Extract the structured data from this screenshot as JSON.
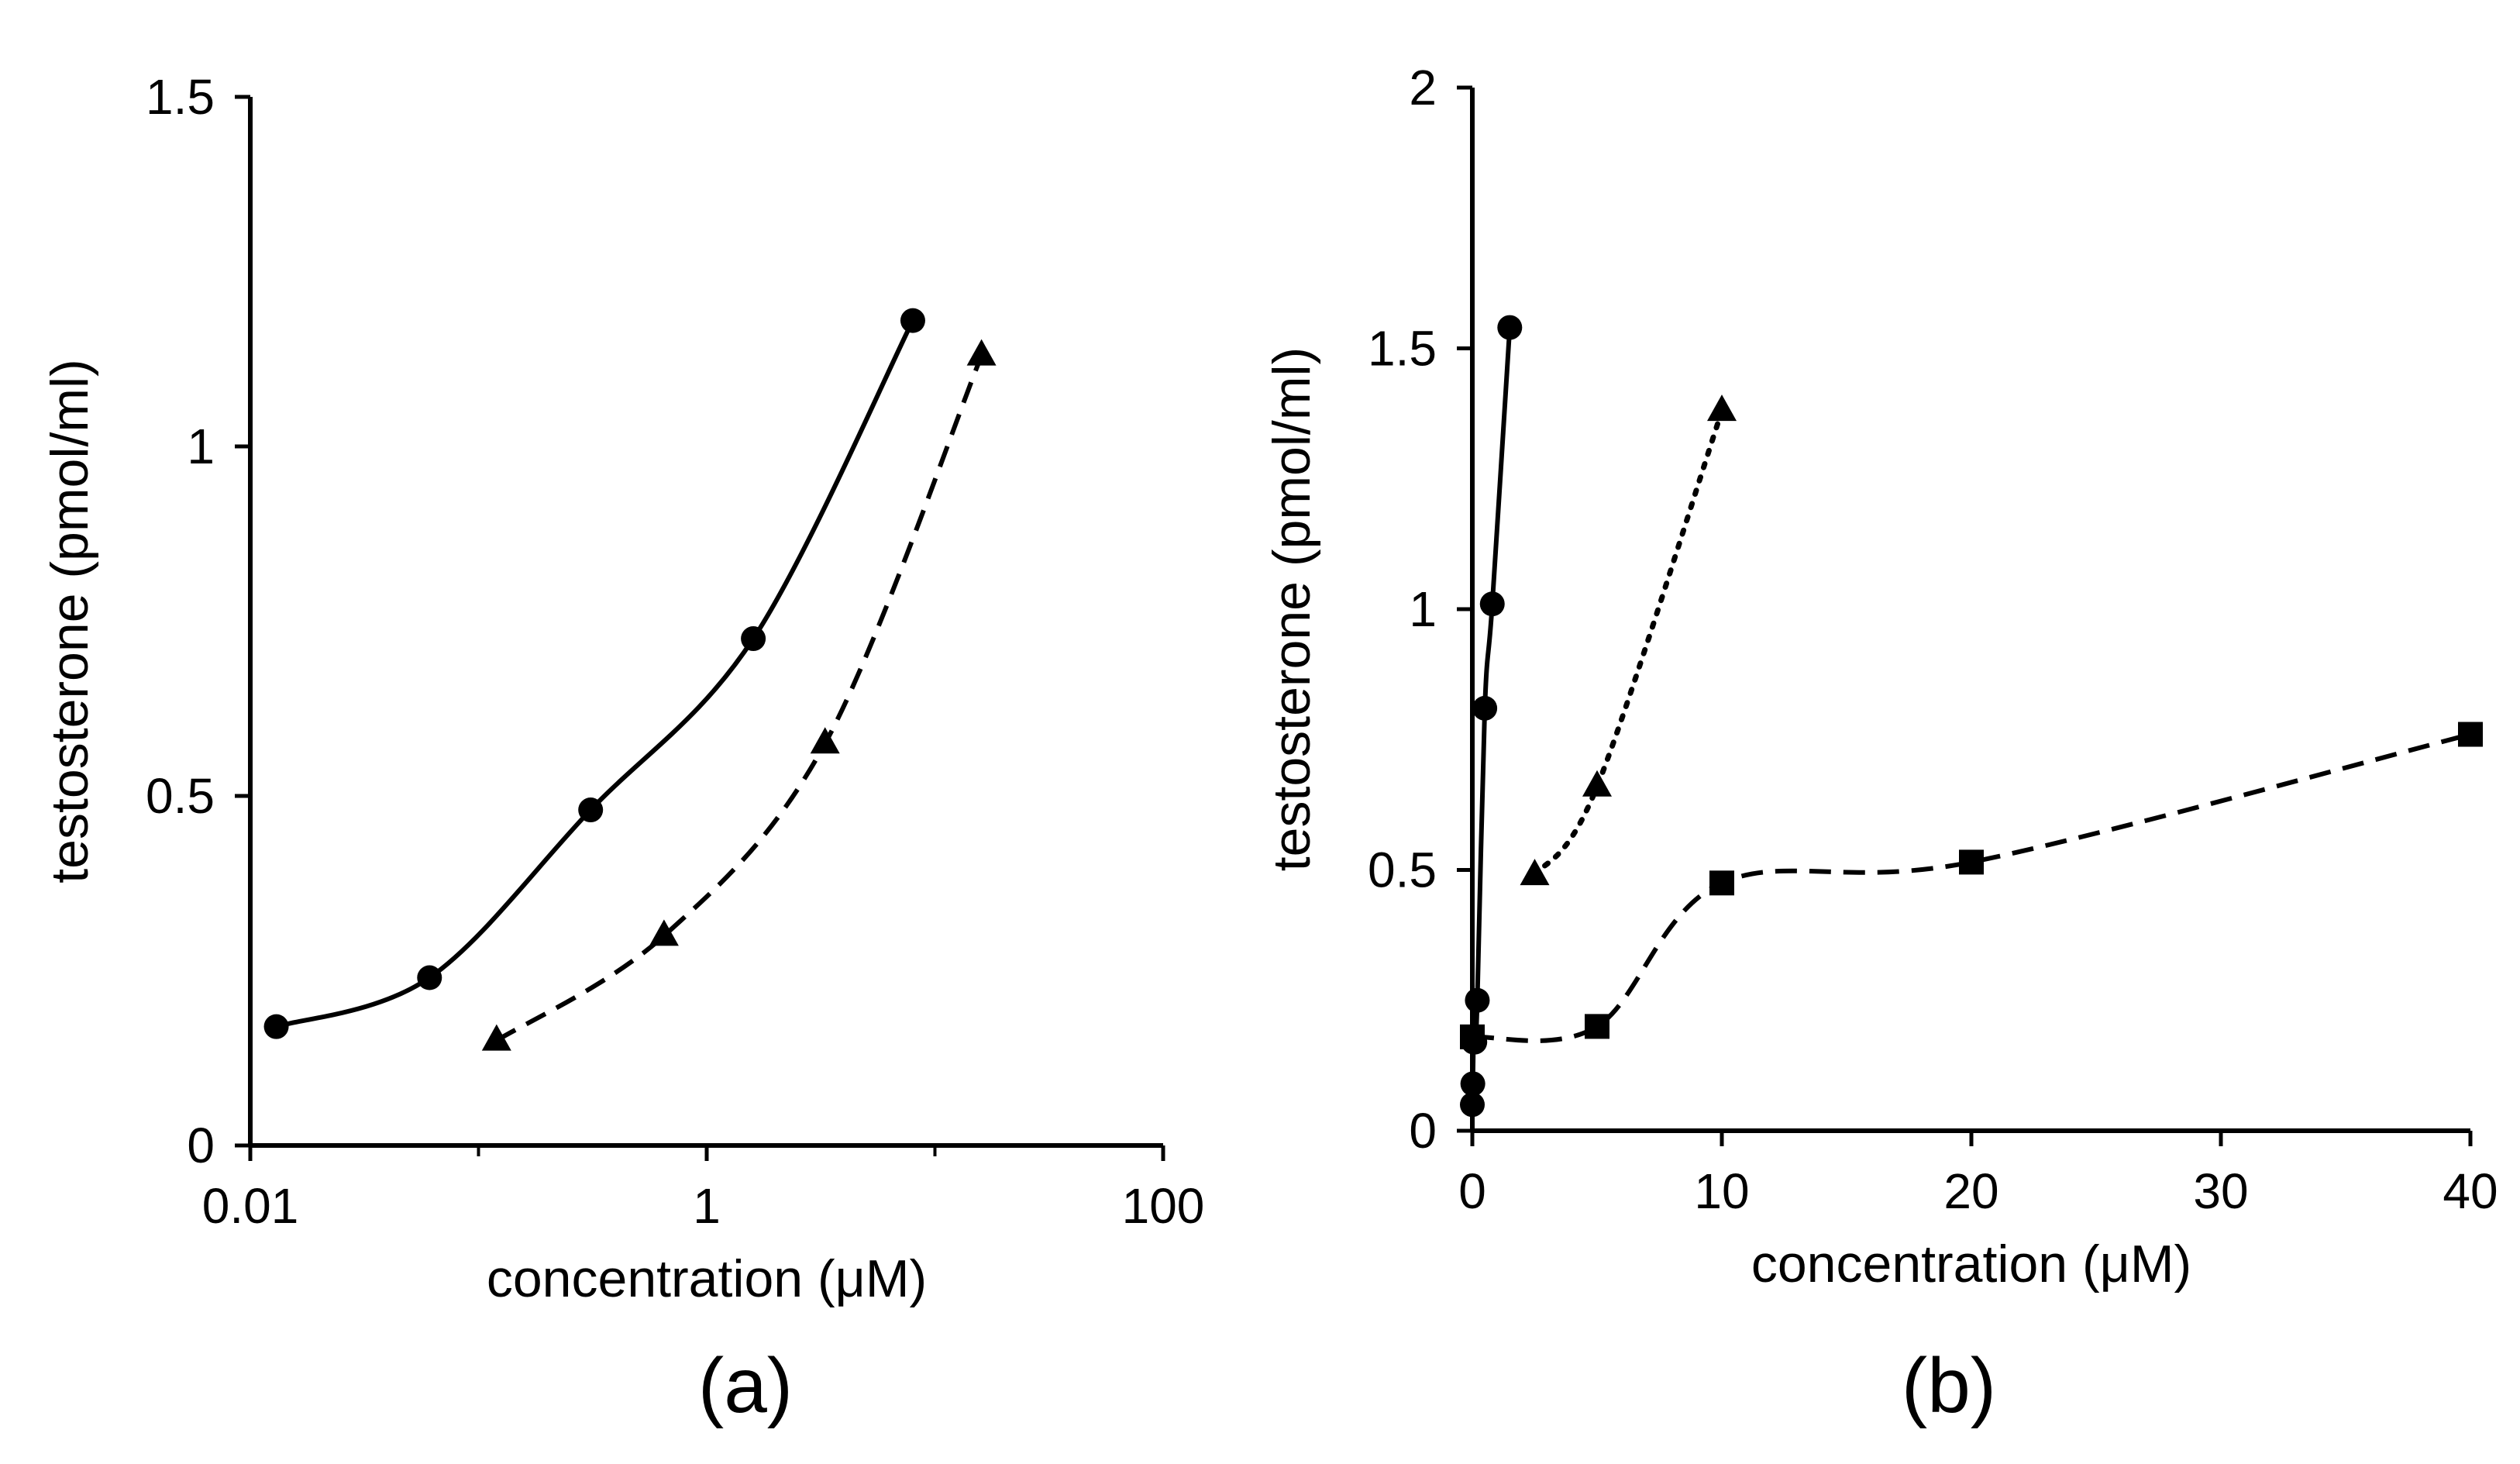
{
  "chart_data": [
    {
      "panel": "(a)",
      "type": "scatter",
      "xscale": "log",
      "xlabel": "concentration  (μM)",
      "ylabel": "testosterone  (pmol/ml)",
      "xlim": [
        0.01,
        100
      ],
      "ylim": [
        0,
        1.5
      ],
      "xticks": [
        0.01,
        1,
        100
      ],
      "xtick_labels": [
        "0.01",
        "1",
        "100"
      ],
      "yticks": [
        0,
        0.5,
        1,
        1.5
      ],
      "ytick_labels": [
        "0",
        "0.5",
        "1",
        "1.5"
      ],
      "series": [
        {
          "marker": "circle",
          "line": "solid",
          "x": [
            0.013,
            0.061,
            0.31,
            1.6,
            8.0
          ],
          "y": [
            0.17,
            0.24,
            0.48,
            0.725,
            1.18
          ]
        },
        {
          "marker": "triangle",
          "line": "dashed",
          "x": [
            0.12,
            0.65,
            3.3,
            16.0
          ],
          "y": [
            0.15,
            0.3,
            0.575,
            1.13
          ]
        }
      ]
    },
    {
      "panel": "(b)",
      "type": "scatter",
      "xlabel": "concentration  (μM)",
      "ylabel": "testosterone  (pmol/ml)",
      "xlim": [
        0,
        40
      ],
      "ylim": [
        0,
        2
      ],
      "xticks": [
        0,
        10,
        20,
        30,
        40
      ],
      "xtick_labels": [
        "0",
        "10",
        "20",
        "30",
        "40"
      ],
      "yticks": [
        0,
        0.5,
        1,
        1.5,
        2
      ],
      "ytick_labels": [
        "0",
        "0.5",
        "1",
        "1.5",
        "2"
      ],
      "series": [
        {
          "marker": "circle",
          "line": "solid",
          "x": [
            0.0,
            0.02,
            0.05,
            0.1,
            0.2,
            0.5,
            0.8,
            1.5
          ],
          "y": [
            0.05,
            0.09,
            0.17,
            0.17,
            0.25,
            0.81,
            1.01,
            1.54
          ]
        },
        {
          "marker": "triangle",
          "line": "dotted",
          "x": [
            2.5,
            5,
            10
          ],
          "y": [
            0.49,
            0.66,
            1.38
          ]
        },
        {
          "marker": "square",
          "line": "dashed",
          "x": [
            0,
            5,
            10,
            20,
            40
          ],
          "y": [
            0.18,
            0.2,
            0.475,
            0.515,
            0.76
          ]
        }
      ]
    }
  ]
}
